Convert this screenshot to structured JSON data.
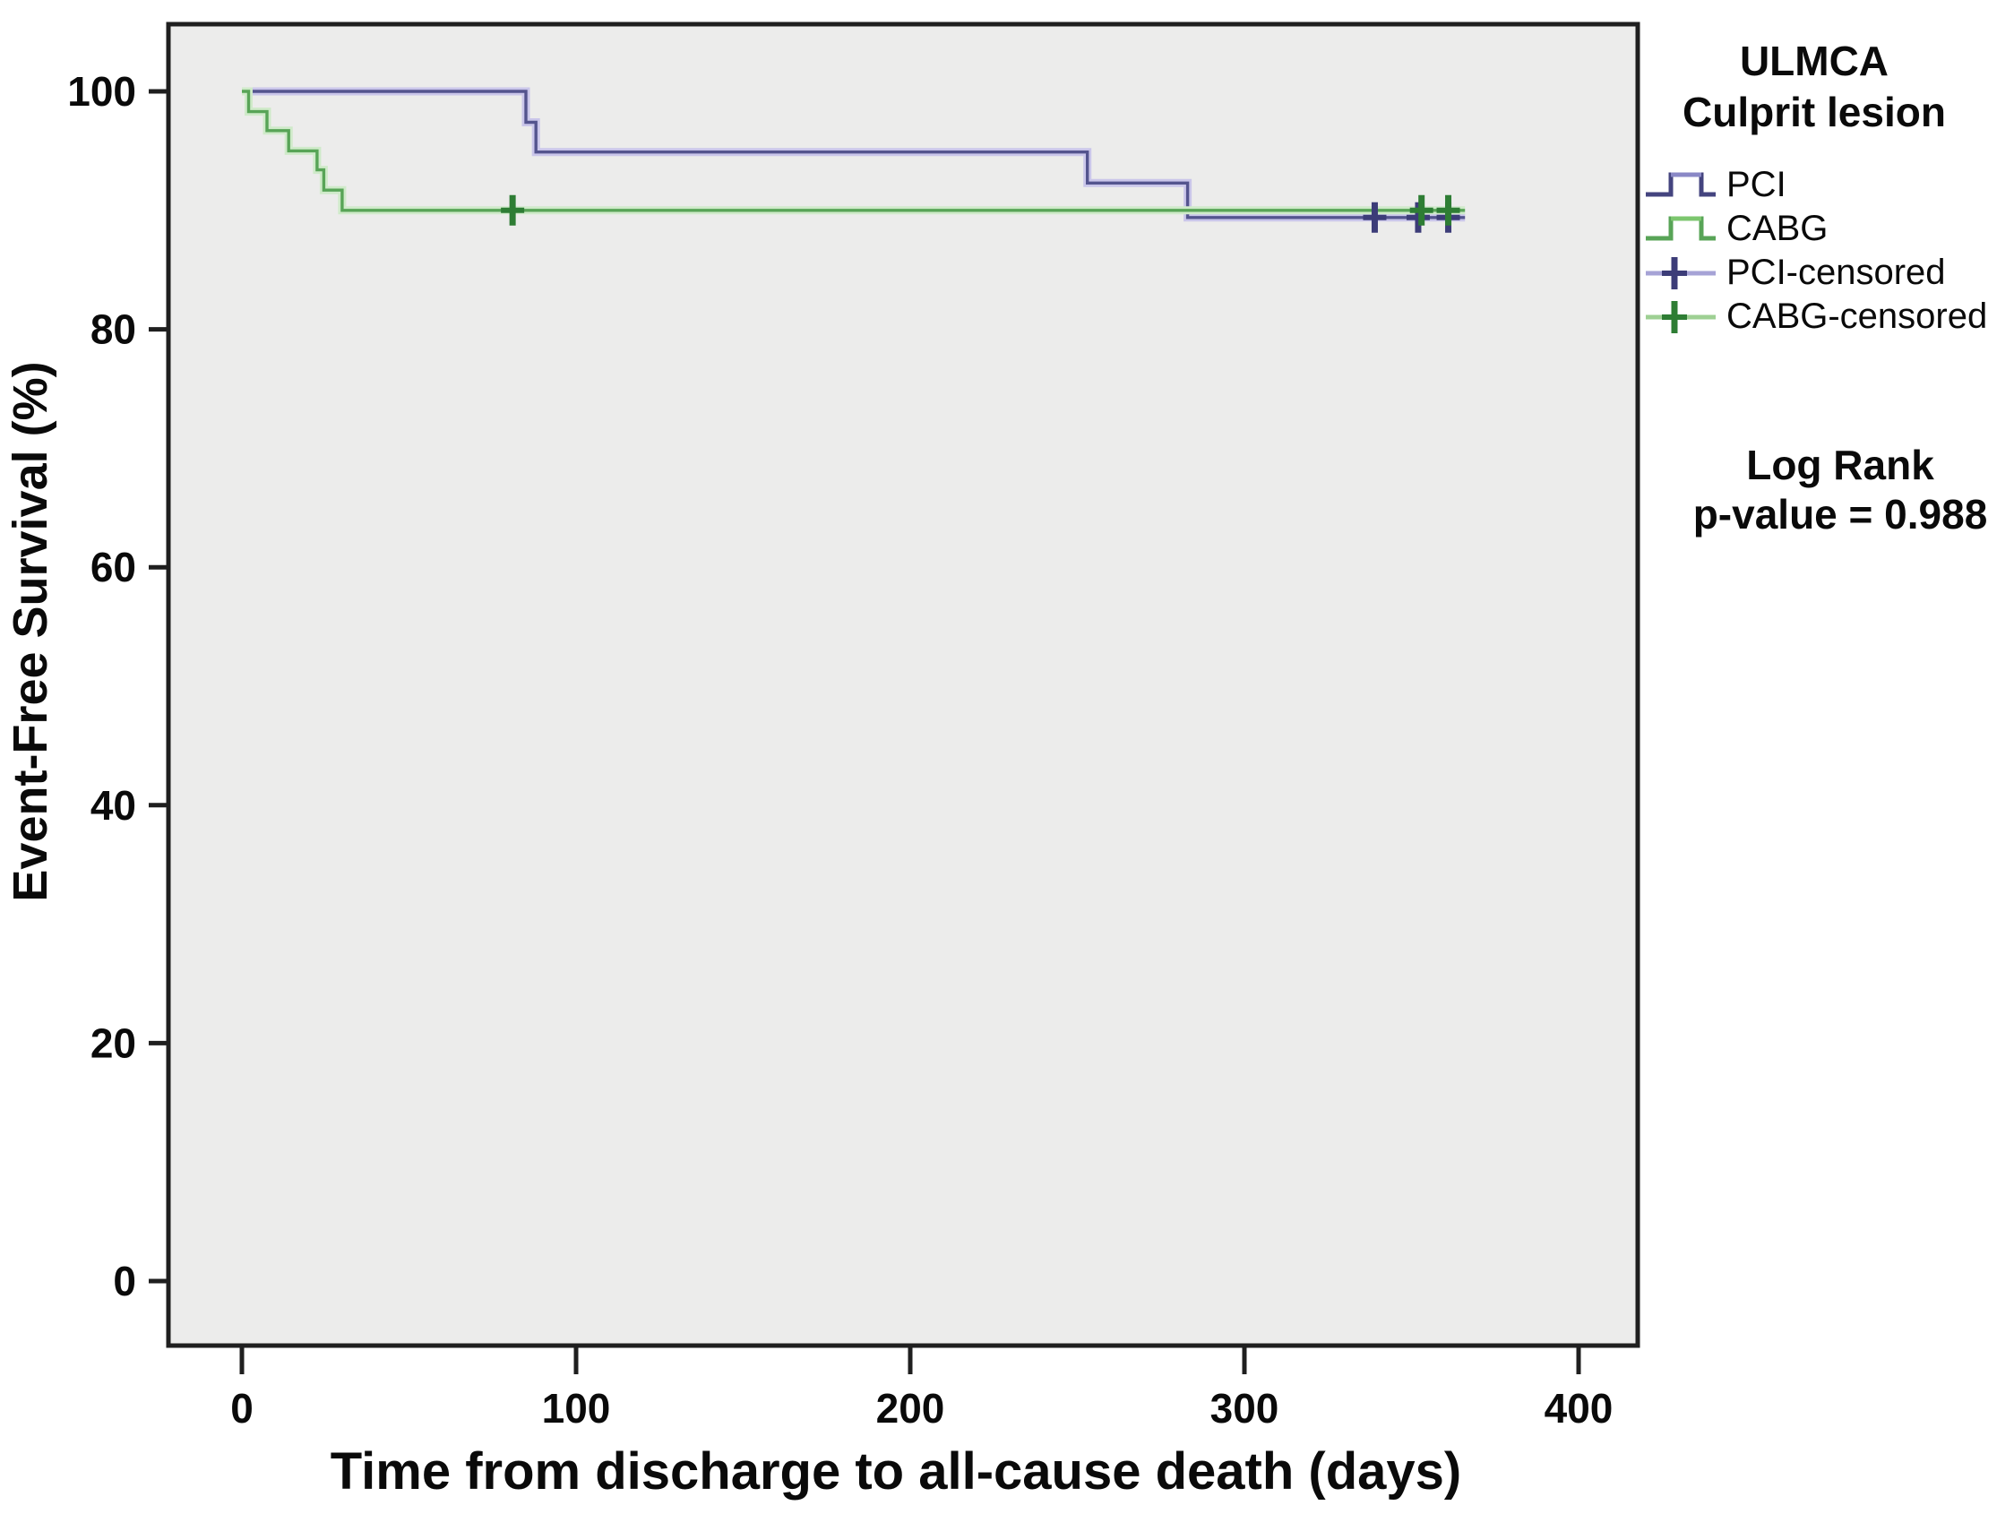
{
  "figure": {
    "y_axis_title": "Event-Free Survival (%)",
    "x_axis_title": "Time from discharge to all-cause death (days)",
    "y_tick_labels": [
      "100",
      "80",
      "60",
      "40",
      "20",
      "0"
    ],
    "x_tick_labels": [
      "0",
      "100",
      "200",
      "300",
      "400"
    ],
    "plot_background": "#ececeb",
    "axis_color": "#1f1f1f",
    "legend": {
      "title_line1": "ULMCA",
      "title_line2": "Culprit lesion",
      "items": [
        {
          "label": "PCI",
          "type": "step",
          "color": "#44447f",
          "glow": "#8a88c6"
        },
        {
          "label": "CABG",
          "type": "step",
          "color": "#58a457",
          "glow": "#7cc66e"
        },
        {
          "label": "PCI-censored",
          "type": "censor",
          "color": "#3c3c78",
          "glow": "#a6a3d6"
        },
        {
          "label": "CABG-censored",
          "type": "censor",
          "color": "#2e7d34",
          "glow": "#9ed093"
        }
      ]
    },
    "annotation_line1": "Log Rank",
    "annotation_line2": "p-value = 0.988"
  },
  "chart_data": {
    "type": "line",
    "subtype": "kaplan-meier-step",
    "title": "",
    "xlabel": "Time from discharge to all-cause death (days)",
    "ylabel": "Event-Free Survival (%)",
    "xlim": [
      -22,
      418
    ],
    "ylim": [
      -5.4,
      105.7
    ],
    "x_ticks": [
      0,
      100,
      200,
      300,
      400
    ],
    "y_ticks": [
      100,
      80,
      60,
      40,
      20,
      0
    ],
    "grid": false,
    "legend_position": "right-outside",
    "annotations": [
      "Log Rank p-value = 0.988"
    ],
    "series": [
      {
        "name": "PCI",
        "color": "#54548e",
        "glow": "#cac6ea",
        "censor_color": "#3c3c78",
        "points": [
          [
            0,
            100
          ],
          [
            85,
            100
          ],
          [
            85,
            97.4
          ],
          [
            88,
            97.4
          ],
          [
            88,
            94.9
          ],
          [
            253,
            94.9
          ],
          [
            253,
            92.3
          ],
          [
            283,
            92.3
          ],
          [
            283,
            89.4
          ],
          [
            366,
            89.4
          ]
        ],
        "censored": [
          [
            339,
            89.4
          ],
          [
            352,
            89.4
          ],
          [
            361,
            89.4
          ]
        ]
      },
      {
        "name": "CABG",
        "color": "#58a457",
        "glow": "#cfeac9",
        "censor_color": "#2e7d34",
        "points": [
          [
            0,
            100
          ],
          [
            2,
            100
          ],
          [
            2,
            98.3
          ],
          [
            7.5,
            98.3
          ],
          [
            7.5,
            96.7
          ],
          [
            14,
            96.7
          ],
          [
            14,
            95
          ],
          [
            22.5,
            95
          ],
          [
            22.5,
            93.4
          ],
          [
            24.5,
            93.4
          ],
          [
            24.5,
            91.7
          ],
          [
            30,
            91.7
          ],
          [
            30,
            90
          ],
          [
            366,
            90
          ]
        ],
        "censored": [
          [
            81,
            90
          ],
          [
            353,
            90
          ],
          [
            361,
            90
          ]
        ]
      }
    ]
  }
}
